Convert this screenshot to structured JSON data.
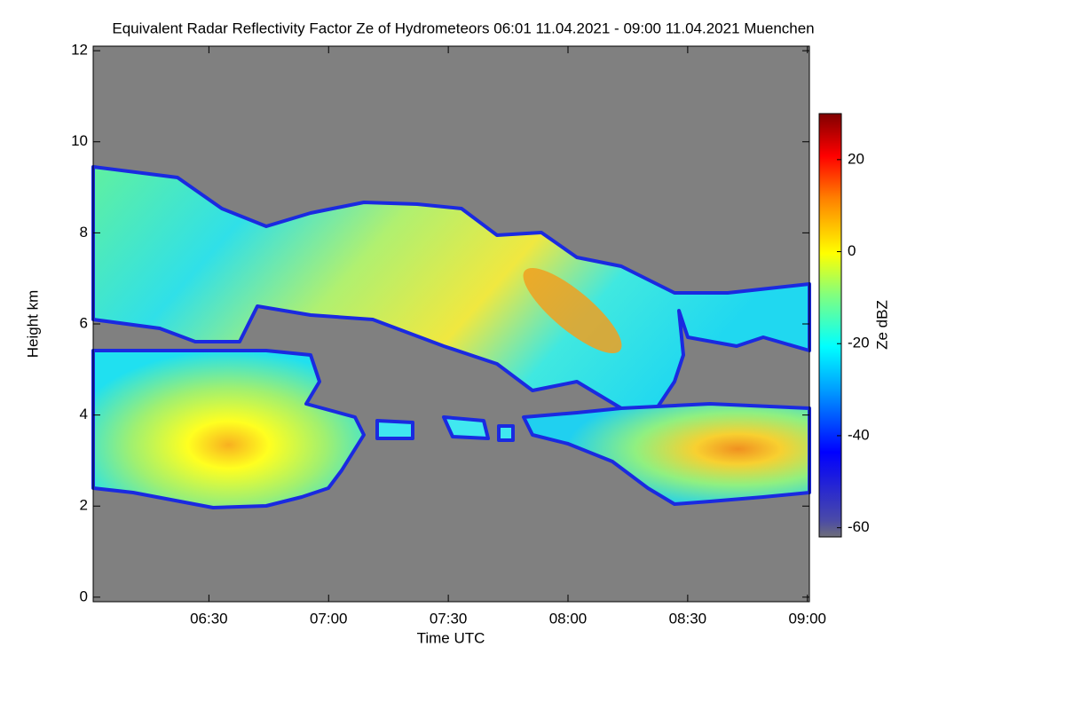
{
  "chart_data": {
    "type": "heatmap",
    "title": "Equivalent Radar Reflectivity Factor Ze of Hydrometeors   06:01 11.04.2021 - 09:00 11.04.2021 Muenchen",
    "x_label": "Time UTC",
    "y_label": "Height km",
    "colorbar_label": "Ze dBZ",
    "xlim": [
      361,
      540.5
    ],
    "xticks": [
      {
        "value": 390,
        "label": "06:30"
      },
      {
        "value": 420,
        "label": "07:00"
      },
      {
        "value": 450,
        "label": "07:30"
      },
      {
        "value": 480,
        "label": "08:00"
      },
      {
        "value": 510,
        "label": "08:30"
      },
      {
        "value": 540,
        "label": "09:00"
      }
    ],
    "ylim": [
      -0.1,
      12.1
    ],
    "yticks": [
      0,
      2,
      4,
      6,
      8,
      10,
      12
    ],
    "clim": [
      -62,
      30
    ],
    "cticks": [
      -60,
      -40,
      -20,
      0,
      20
    ],
    "background_color": "#808080"
  }
}
